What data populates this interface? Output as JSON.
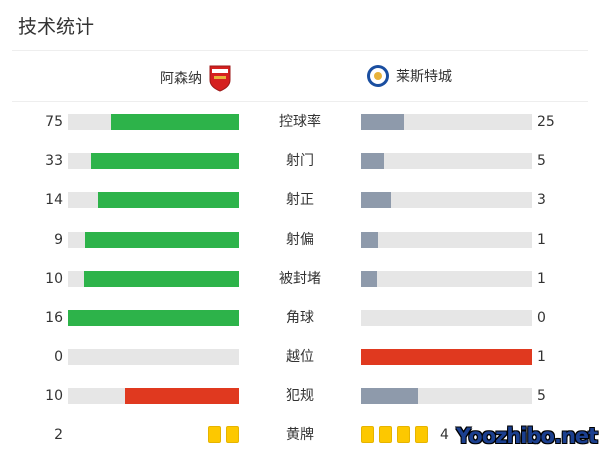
{
  "title": "技术统计",
  "home": {
    "name": "阿森纳",
    "crest": "arsenal-crest"
  },
  "away": {
    "name": "莱斯特城",
    "crest": "leicester-crest"
  },
  "colors": {
    "home": "#2db34a",
    "away": "#8e9aab",
    "highlight": "#e0391f",
    "track": "#e6e6e6",
    "card": "#fdc800"
  },
  "stats": [
    {
      "label": "控球率",
      "home": 75,
      "away": 25,
      "highlight": null
    },
    {
      "label": "射门",
      "home": 33,
      "away": 5,
      "highlight": null
    },
    {
      "label": "射正",
      "home": 14,
      "away": 3,
      "highlight": null
    },
    {
      "label": "射偏",
      "home": 9,
      "away": 1,
      "highlight": null
    },
    {
      "label": "被封堵",
      "home": 10,
      "away": 1,
      "highlight": null
    },
    {
      "label": "角球",
      "home": 16,
      "away": 0,
      "highlight": null
    },
    {
      "label": "越位",
      "home": 0,
      "away": 1,
      "highlight": "away"
    },
    {
      "label": "犯规",
      "home": 10,
      "away": 5,
      "highlight": "home"
    }
  ],
  "yellow": {
    "label": "黄牌",
    "home": 2,
    "away": 4
  },
  "watermark": "Yoozhibo.net"
}
